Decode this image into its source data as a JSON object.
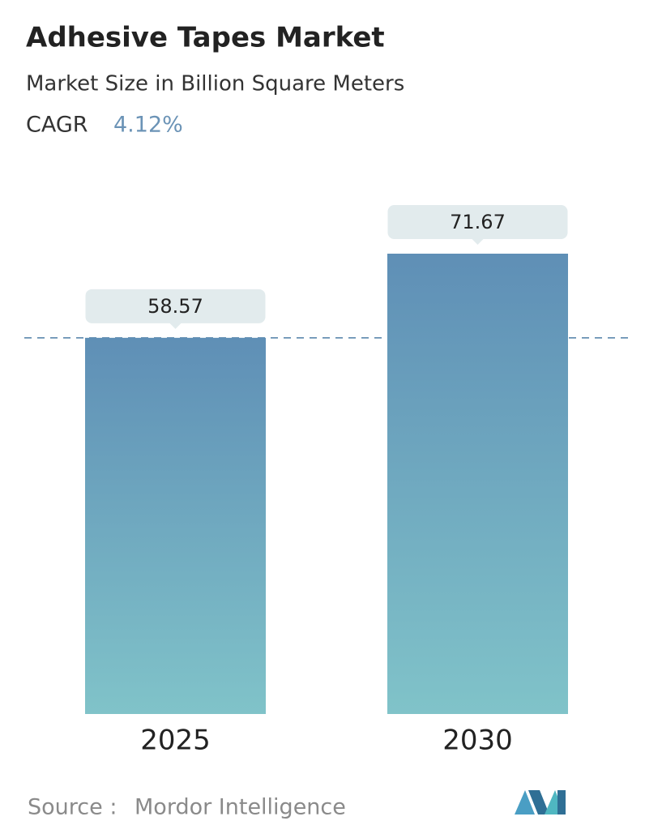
{
  "chart_data": {
    "type": "bar",
    "title": "Adhesive Tapes Market",
    "subtitle": "Market Size in Billion Square Meters",
    "cagr_label": "CAGR",
    "cagr_value": "4.12%",
    "categories": [
      "2025",
      "2030"
    ],
    "values": [
      58.57,
      71.67
    ],
    "color_top": "#5f8fb6",
    "color_bottom": "#80c3c9",
    "source_label": "Source :",
    "source": "Mordor Intelligence"
  }
}
